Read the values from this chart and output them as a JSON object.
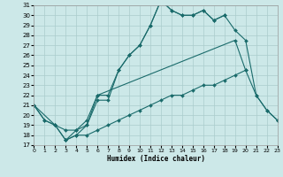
{
  "xlabel": "Humidex (Indice chaleur)",
  "bg_color": "#cce8e8",
  "grid_color": "#aacccc",
  "line_color": "#1a6b6b",
  "xlim": [
    0,
    23
  ],
  "ylim": [
    17,
    31
  ],
  "xticks": [
    0,
    1,
    2,
    3,
    4,
    5,
    6,
    7,
    8,
    9,
    10,
    11,
    12,
    13,
    14,
    15,
    16,
    17,
    18,
    19,
    20,
    21,
    22,
    23
  ],
  "yticks": [
    17,
    18,
    19,
    20,
    21,
    22,
    23,
    24,
    25,
    26,
    27,
    28,
    29,
    30,
    31
  ],
  "curve1_x": [
    0,
    1,
    2,
    3,
    4,
    5,
    6,
    7,
    8,
    9,
    10,
    11,
    12,
    13,
    14,
    15,
    16,
    17,
    18
  ],
  "curve1_y": [
    21,
    19.5,
    19,
    17.5,
    18,
    19,
    21.5,
    21.5,
    24.5,
    26,
    27,
    29,
    31.5,
    30.5,
    30,
    30,
    30.5,
    29.5,
    30
  ],
  "curve2_x": [
    0,
    2,
    3,
    4,
    5,
    6,
    19,
    20,
    21,
    22,
    23
  ],
  "curve2_y": [
    21,
    19,
    18.5,
    18.5,
    19,
    22,
    27.5,
    24.5,
    22,
    20.5,
    19.5
  ],
  "curve3_x": [
    3,
    4,
    5,
    6,
    7,
    8,
    9,
    10,
    11,
    12,
    13,
    14,
    15,
    16,
    17,
    18,
    19,
    20
  ],
  "curve3_y": [
    17.5,
    18,
    18,
    18.5,
    19,
    19.5,
    20,
    20.5,
    21,
    21.5,
    22,
    22,
    22.5,
    23,
    23,
    23.5,
    24,
    24.5
  ],
  "curve4_x": [
    0,
    1,
    2,
    3,
    4,
    5,
    6,
    7,
    8,
    9,
    10,
    11,
    12,
    13,
    14,
    15,
    16,
    17,
    18,
    19,
    20,
    21,
    22,
    23
  ],
  "curve4_y": [
    21,
    19.5,
    19,
    17.5,
    18.5,
    19.5,
    22,
    22,
    24.5,
    26,
    27,
    29,
    31.5,
    30.5,
    30,
    30,
    30.5,
    29.5,
    30,
    28.5,
    27.5,
    22,
    20.5,
    19.5
  ]
}
